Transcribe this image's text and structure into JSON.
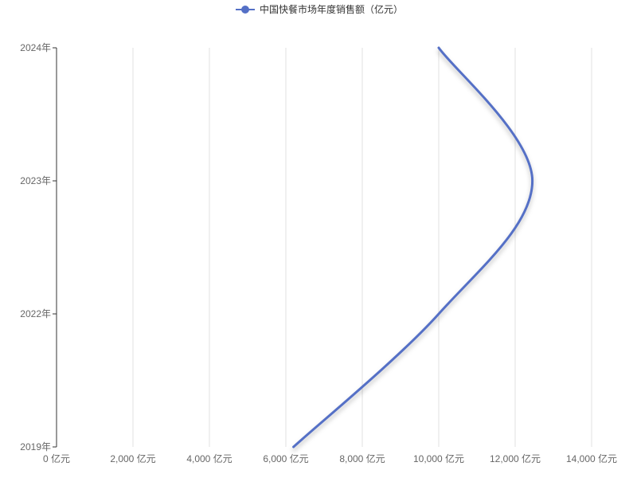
{
  "chart_data": {
    "type": "line",
    "orientation": "horizontal-values",
    "legend": {
      "position": "top-center",
      "entries": [
        "中国快餐市场年度销售额（亿元）"
      ]
    },
    "x_axis": {
      "tick_labels": [
        "0 亿元",
        "2,000 亿元",
        "4,000 亿元",
        "6,000 亿元",
        "8,000 亿元",
        "10,000 亿元",
        "12,000 亿元",
        "14,000 亿元"
      ],
      "range": [
        0,
        15000
      ],
      "grid": true
    },
    "y_axis": {
      "categories": [
        "2019年",
        "2022年",
        "2023年",
        "2024年"
      ]
    },
    "series": [
      {
        "name": "中国快餐市场年度销售额（亿元）",
        "color": "#5470c6",
        "values": [
          6200,
          10000,
          12450,
          10000
        ]
      }
    ]
  }
}
